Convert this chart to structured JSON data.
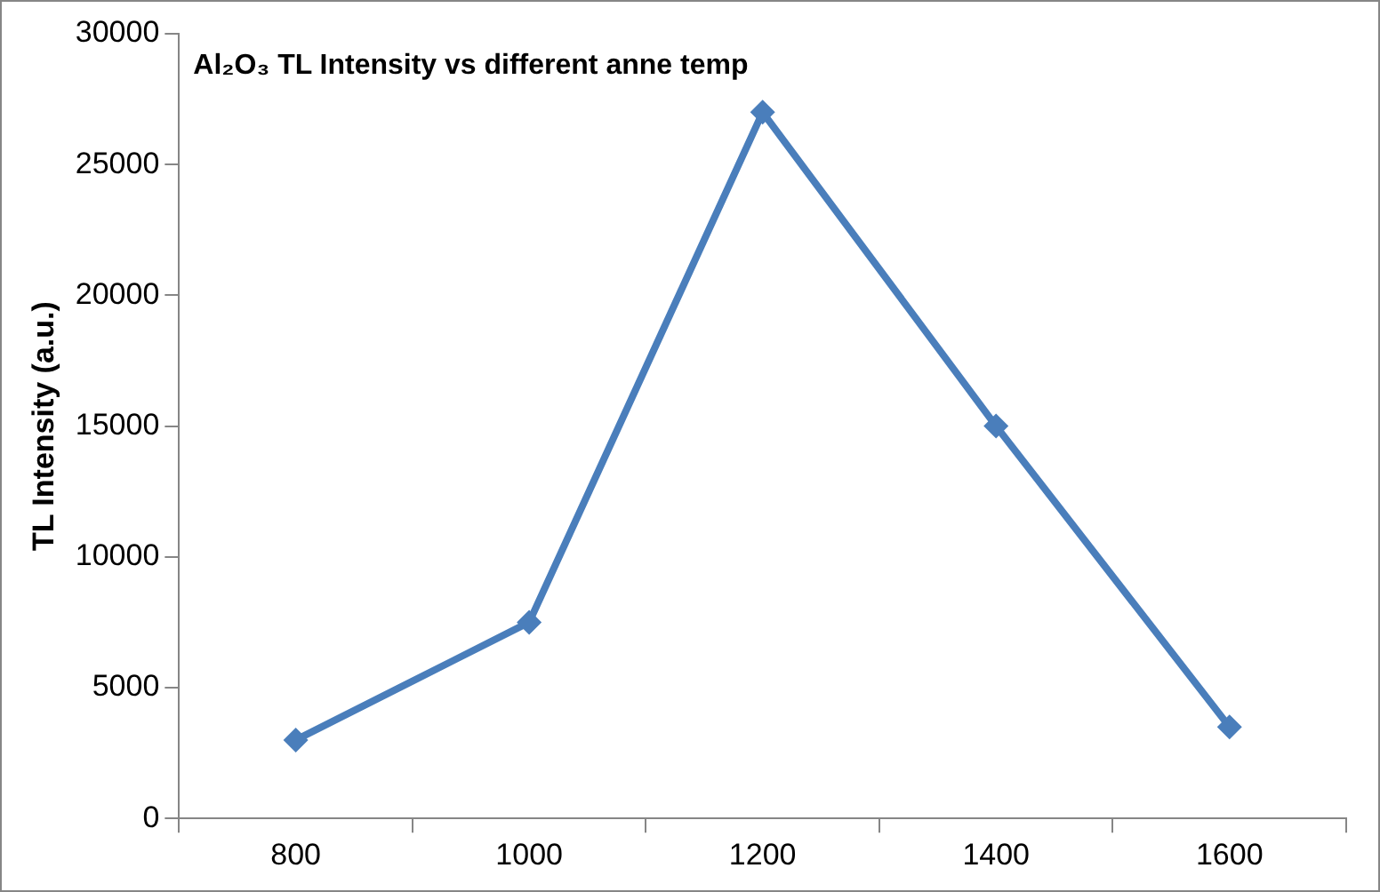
{
  "chart_data": {
    "type": "line",
    "title": "Al₂O₃ TL Intensity vs different anne temp",
    "ylabel": "TL Intensity (a.u.)",
    "categories": [
      "800",
      "1000",
      "1200",
      "1400",
      "1600"
    ],
    "series": [
      {
        "color": "#4a7ebb",
        "values": [
          3000,
          7500,
          27000,
          15000,
          3500
        ]
      }
    ],
    "ylim": [
      0,
      30000
    ],
    "yticks": [
      0,
      5000,
      10000,
      15000,
      20000,
      25000,
      30000
    ],
    "grid": false,
    "marker": "diamond",
    "line_style": "solid"
  }
}
